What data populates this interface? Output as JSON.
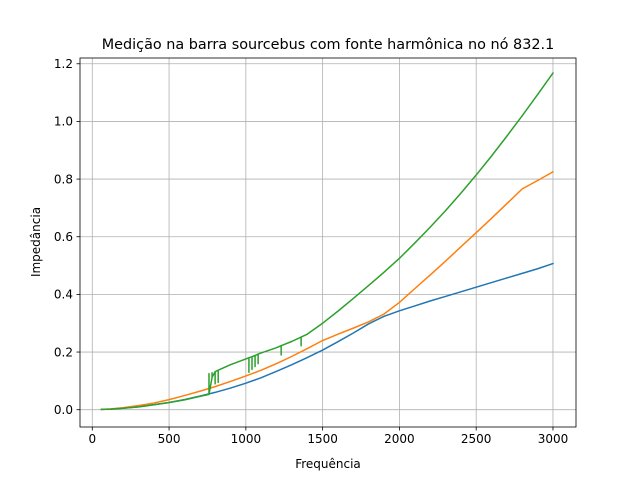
{
  "chart_data": {
    "type": "line",
    "title": "Medição na barra sourcebus com fonte harmônica no nó 832.1",
    "xlabel": "Frequência",
    "ylabel": "Impedância",
    "xlim": [
      -80,
      3150
    ],
    "ylim": [
      -0.06,
      1.22
    ],
    "xticks": [
      0,
      500,
      1000,
      1500,
      2000,
      2500,
      3000
    ],
    "xtick_labels": [
      "0",
      "500",
      "1000",
      "1500",
      "2000",
      "2500",
      "3000"
    ],
    "yticks": [
      0.0,
      0.2,
      0.4,
      0.6,
      0.8,
      1.0,
      1.2
    ],
    "ytick_labels": [
      "0.0",
      "0.2",
      "0.4",
      "0.6",
      "0.8",
      "1.0",
      "1.2"
    ],
    "grid": true,
    "series": [
      {
        "color": "#1f77b4",
        "x": [
          60,
          120,
          200,
          300,
          400,
          500,
          600,
          700,
          800,
          900,
          1000,
          1100,
          1200,
          1300,
          1400,
          1500,
          1600,
          1700,
          1800,
          1900,
          2000,
          2100,
          2200,
          2300,
          2400,
          2500,
          2600,
          2700,
          2800,
          2900,
          3000
        ],
        "values": [
          0.001,
          0.002,
          0.005,
          0.01,
          0.017,
          0.025,
          0.035,
          0.047,
          0.06,
          0.075,
          0.092,
          0.111,
          0.133,
          0.156,
          0.181,
          0.207,
          0.236,
          0.266,
          0.298,
          0.324,
          0.343,
          0.36,
          0.377,
          0.393,
          0.409,
          0.425,
          0.441,
          0.457,
          0.473,
          0.489,
          0.507
        ]
      },
      {
        "color": "#ff7f0e",
        "x": [
          60,
          120,
          200,
          300,
          400,
          500,
          600,
          700,
          800,
          900,
          1000,
          1100,
          1200,
          1300,
          1400,
          1500,
          1600,
          1700,
          1800,
          1900,
          2000,
          2100,
          2200,
          2300,
          2400,
          2500,
          2600,
          2700,
          2800,
          2900,
          3000
        ],
        "values": [
          0.001,
          0.003,
          0.007,
          0.014,
          0.023,
          0.035,
          0.049,
          0.064,
          0.08,
          0.098,
          0.117,
          0.137,
          0.16,
          0.185,
          0.212,
          0.24,
          0.262,
          0.283,
          0.305,
          0.332,
          0.372,
          0.42,
          0.467,
          0.515,
          0.565,
          0.614,
          0.664,
          0.715,
          0.766,
          0.795,
          0.825
        ]
      },
      {
        "color": "#2ca02c",
        "x": [
          60,
          120,
          200,
          300,
          400,
          500,
          600,
          700,
          760,
          760,
          760,
          780,
          780,
          780,
          800,
          800,
          800,
          820,
          820,
          820,
          900,
          1000,
          1020,
          1020,
          1020,
          1040,
          1040,
          1040,
          1060,
          1060,
          1060,
          1080,
          1080,
          1080,
          1100,
          1200,
          1230,
          1230,
          1230,
          1300,
          1360,
          1360,
          1360,
          1400,
          1500,
          1600,
          1700,
          1800,
          1900,
          2000,
          2100,
          2200,
          2300,
          2400,
          2500,
          2600,
          2700,
          2800,
          2900,
          3000
        ],
        "values": [
          0.001,
          0.002,
          0.005,
          0.01,
          0.017,
          0.025,
          0.034,
          0.046,
          0.053,
          0.125,
          0.053,
          0.112,
          0.128,
          0.112,
          0.132,
          0.09,
          0.132,
          0.137,
          0.095,
          0.137,
          0.156,
          0.176,
          0.18,
          0.13,
          0.18,
          0.184,
          0.14,
          0.184,
          0.188,
          0.15,
          0.188,
          0.193,
          0.16,
          0.193,
          0.197,
          0.215,
          0.222,
          0.19,
          0.222,
          0.237,
          0.252,
          0.222,
          0.252,
          0.262,
          0.3,
          0.342,
          0.386,
          0.431,
          0.477,
          0.525,
          0.578,
          0.633,
          0.69,
          0.751,
          0.814,
          0.88,
          0.949,
          1.02,
          1.093,
          1.168
        ]
      }
    ]
  }
}
